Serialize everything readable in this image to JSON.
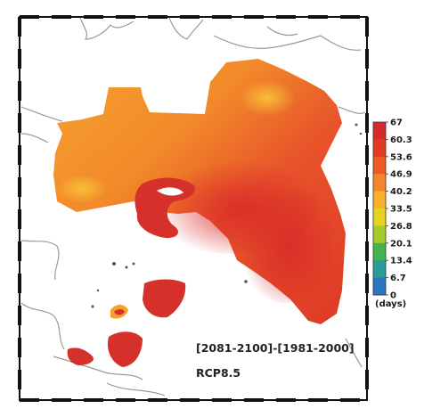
{
  "map": {
    "period_label": "[2081-2100]-[1981-2000]",
    "scenario_label": "RCP8.5"
  },
  "colorbar": {
    "ticks": [
      "67",
      "60.3",
      "53.6",
      "46.9",
      "40.2",
      "33.5",
      "26.8",
      "20.1",
      "13.4",
      "6.7",
      "0"
    ],
    "unit": "(days)",
    "colors": [
      "#d62a2a",
      "#e03b22",
      "#ee5a22",
      "#f5852a",
      "#f8b22a",
      "#e6d21f",
      "#a4cc2a",
      "#43b34e",
      "#2a9c9a",
      "#2a76c2",
      "#2d57b6"
    ]
  }
}
